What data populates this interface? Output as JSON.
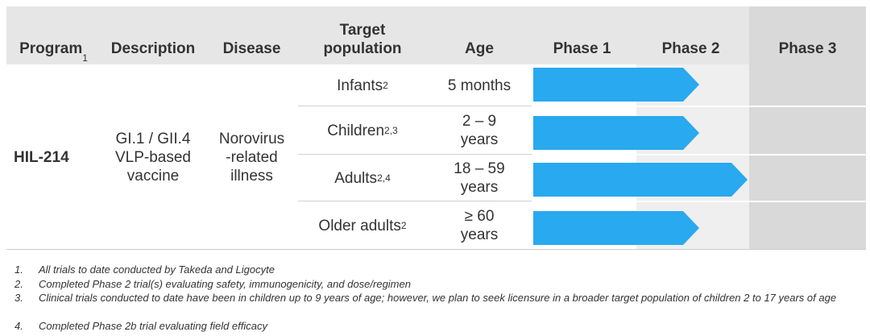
{
  "table": {
    "headers": [
      "Program",
      "Description",
      "Disease",
      "Target\npopulation",
      "Age",
      "Phase 1",
      "Phase 2",
      "Phase 3"
    ],
    "program_superscript": "1",
    "program": "HIL-214",
    "description": "GI.1 / GII.4\nVLP-based\nvaccine",
    "disease": "Norovirus\n-related\nillness",
    "populations": [
      {
        "name": "Infants",
        "sup": "2",
        "age": "5 months"
      },
      {
        "name": "Children",
        "sup": "2,3",
        "age": "2 – 9\nyears"
      },
      {
        "name": "Adults",
        "sup": "2,4",
        "age": "18 – 59\nyears"
      },
      {
        "name": "Older adults",
        "sup": "2",
        "age": "≥ 60\nyears"
      }
    ]
  },
  "footnotes": [
    {
      "number": "1.",
      "text": "All trials to date conducted by Takeda and Ligocyte"
    },
    {
      "number": "2.",
      "text": "Completed Phase 2 trial(s) evaluating safety, immunogenicity, and dose/regimen"
    },
    {
      "number": "3.",
      "text": "Clinical trials conducted to date have been in children up to 9 years of age; however, we plan to seek licensure in a broader target population of children 2 to 17 years of age"
    },
    {
      "number": "4.",
      "text": "Completed Phase 2b trial evaluating field efficacy"
    }
  ]
}
